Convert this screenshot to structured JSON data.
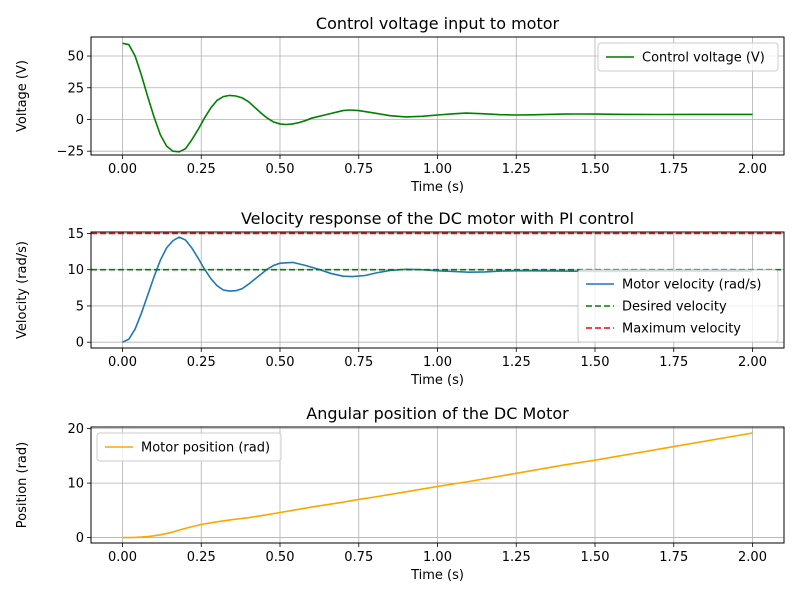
{
  "chart_data": [
    {
      "type": "line",
      "title": "Control voltage input to motor",
      "xlabel": "Time (s)",
      "ylabel": "Voltage (V)",
      "xlim": [
        -0.1,
        2.1
      ],
      "ylim": [
        -28,
        65
      ],
      "xticks": [
        0,
        0.25,
        0.5,
        0.75,
        1.0,
        1.25,
        1.5,
        1.75,
        2.0
      ],
      "xtick_labels": [
        "0.00",
        "0.25",
        "0.50",
        "0.75",
        "1.00",
        "1.25",
        "1.50",
        "1.75",
        "2.00"
      ],
      "yticks": [
        -25,
        0,
        25,
        50
      ],
      "ytick_labels": [
        "−25",
        "0",
        "25",
        "50"
      ],
      "grid": true,
      "legend_position": "upper-right",
      "series": [
        {
          "name": "Control voltage (V)",
          "color": "#008000",
          "style": "solid",
          "x": [
            0,
            0.02,
            0.04,
            0.06,
            0.08,
            0.1,
            0.12,
            0.14,
            0.16,
            0.18,
            0.2,
            0.22,
            0.24,
            0.26,
            0.28,
            0.3,
            0.32,
            0.34,
            0.36,
            0.38,
            0.4,
            0.42,
            0.44,
            0.46,
            0.48,
            0.5,
            0.52,
            0.54,
            0.56,
            0.58,
            0.6,
            0.65,
            0.7,
            0.72,
            0.75,
            0.8,
            0.85,
            0.9,
            0.95,
            1.0,
            1.05,
            1.09,
            1.15,
            1.2,
            1.25,
            1.3,
            1.4,
            1.45,
            1.5,
            1.6,
            1.7,
            1.8,
            1.9,
            2.0
          ],
          "values": [
            60,
            59,
            50,
            35,
            18,
            2,
            -12,
            -21,
            -25,
            -25.5,
            -23,
            -16,
            -8,
            1,
            9,
            15,
            18,
            19,
            18.5,
            17,
            14,
            9.5,
            5,
            1,
            -2,
            -3.5,
            -4,
            -3.5,
            -2.5,
            -1,
            1,
            4,
            7,
            7.5,
            7,
            5,
            3,
            2,
            2.5,
            3.5,
            4.5,
            5,
            4.5,
            3.8,
            3.5,
            3.7,
            4.2,
            4.3,
            4.2,
            4,
            3.9,
            4,
            4,
            4
          ]
        }
      ]
    },
    {
      "type": "line",
      "title": "Velocity response of the DC motor with PI control",
      "xlabel": "Time (s)",
      "ylabel": "Velocity (rad/s)",
      "xlim": [
        -0.1,
        2.1
      ],
      "ylim": [
        -0.8,
        15.2
      ],
      "xticks": [
        0,
        0.25,
        0.5,
        0.75,
        1.0,
        1.25,
        1.5,
        1.75,
        2.0
      ],
      "xtick_labels": [
        "0.00",
        "0.25",
        "0.50",
        "0.75",
        "1.00",
        "1.25",
        "1.50",
        "1.75",
        "2.00"
      ],
      "yticks": [
        0,
        5,
        10,
        15
      ],
      "ytick_labels": [
        "0",
        "5",
        "10",
        "15"
      ],
      "grid": true,
      "legend_position": "lower-right",
      "series": [
        {
          "name": "Motor velocity (rad/s)",
          "color": "#1f77b4",
          "style": "solid",
          "x": [
            0,
            0.02,
            0.04,
            0.06,
            0.08,
            0.1,
            0.12,
            0.14,
            0.16,
            0.18,
            0.2,
            0.22,
            0.24,
            0.26,
            0.28,
            0.3,
            0.32,
            0.34,
            0.36,
            0.38,
            0.4,
            0.42,
            0.44,
            0.46,
            0.48,
            0.5,
            0.54,
            0.58,
            0.62,
            0.66,
            0.7,
            0.73,
            0.77,
            0.81,
            0.85,
            0.9,
            0.95,
            1.0,
            1.05,
            1.1,
            1.15,
            1.2,
            1.25,
            1.3,
            1.4,
            1.5,
            1.6,
            1.7,
            1.8,
            1.9,
            2.0
          ],
          "values": [
            0,
            0.4,
            1.8,
            4,
            6.5,
            9,
            11.3,
            13,
            14,
            14.5,
            14.1,
            13,
            11.6,
            10.1,
            8.8,
            7.8,
            7.2,
            7.05,
            7.1,
            7.4,
            8,
            8.7,
            9.4,
            10.1,
            10.6,
            10.9,
            11,
            10.6,
            10.1,
            9.5,
            9.1,
            9.05,
            9.2,
            9.6,
            9.9,
            10.05,
            10,
            9.85,
            9.75,
            9.65,
            9.7,
            9.8,
            9.85,
            9.85,
            9.8,
            9.75,
            9.78,
            9.8,
            9.8,
            9.78,
            9.8
          ]
        },
        {
          "name": "Desired velocity",
          "color": "#008000",
          "style": "dashed",
          "x": [
            -0.1,
            2.1
          ],
          "values": [
            10,
            10
          ]
        },
        {
          "name": "Maximum velocity",
          "color": "#ff0000",
          "style": "dashed",
          "x": [
            -0.1,
            2.1
          ],
          "values": [
            15,
            15
          ]
        }
      ]
    },
    {
      "type": "line",
      "title": "Angular position of the DC Motor",
      "xlabel": "Time (s)",
      "ylabel": "Position (rad)",
      "xlim": [
        -0.1,
        2.1
      ],
      "ylim": [
        -1,
        20.3
      ],
      "xticks": [
        0,
        0.25,
        0.5,
        0.75,
        1.0,
        1.25,
        1.5,
        1.75,
        2.0
      ],
      "xtick_labels": [
        "0.00",
        "0.25",
        "0.50",
        "0.75",
        "1.00",
        "1.25",
        "1.50",
        "1.75",
        "2.00"
      ],
      "yticks": [
        0,
        10,
        20
      ],
      "ytick_labels": [
        "0",
        "10",
        "20"
      ],
      "grid": true,
      "legend_position": "upper-left",
      "series": [
        {
          "name": "Motor position (rad)",
          "color": "#ffa500",
          "style": "solid",
          "x": [
            0,
            0.02,
            0.04,
            0.06,
            0.08,
            0.1,
            0.12,
            0.15,
            0.18,
            0.21,
            0.25,
            0.28,
            0.3,
            0.35,
            0.4,
            0.45,
            0.5,
            0.55,
            0.6,
            0.7,
            0.75,
            0.8,
            0.9,
            1.0,
            1.1,
            1.25,
            1.4,
            1.5,
            1.75,
            2.0
          ],
          "values": [
            0,
            0,
            0.03,
            0.08,
            0.18,
            0.33,
            0.5,
            0.88,
            1.36,
            1.85,
            2.4,
            2.7,
            2.9,
            3.3,
            3.65,
            4.1,
            4.6,
            5.1,
            5.6,
            6.5,
            7,
            7.45,
            8.4,
            9.4,
            10.3,
            11.8,
            13.3,
            14.2,
            16.7,
            19.2
          ]
        }
      ]
    }
  ]
}
